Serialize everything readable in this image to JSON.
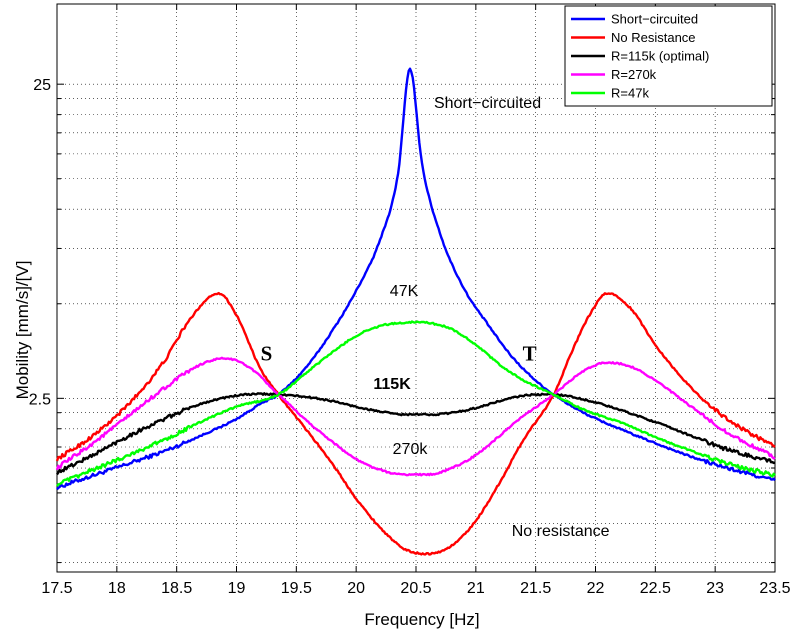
{
  "chart_data": {
    "type": "line",
    "xlabel": "Frequency [Hz]",
    "ylabel": "Mobility [mm/s]/[V]",
    "xlim": [
      17.5,
      23.5
    ],
    "ylim": [
      0.7,
      45
    ],
    "yscale": "log",
    "grid": true,
    "legend_position": "top-right",
    "x_ticks": [
      "17.5",
      "18",
      "18.5",
      "19",
      "19.5",
      "20",
      "20.5",
      "21",
      "21.5",
      "22",
      "22.5",
      "23",
      "23.5"
    ],
    "y_ticks": [
      "2.5",
      "25"
    ],
    "series": [
      {
        "name": "Short−circuited",
        "color": "#0000ff",
        "x": [
          17.5,
          17.8,
          18.1,
          18.4,
          18.7,
          19.0,
          19.2,
          19.35,
          19.6,
          19.8,
          20.0,
          20.2,
          20.35,
          20.45,
          20.55,
          20.7,
          20.9,
          21.1,
          21.3,
          21.5,
          21.65,
          21.9,
          22.2,
          22.5,
          22.8,
          23.1,
          23.5
        ],
        "y": [
          1.3,
          1.42,
          1.55,
          1.7,
          1.9,
          2.15,
          2.4,
          2.57,
          3.2,
          4.1,
          5.5,
          8.0,
          13.0,
          28.0,
          14.0,
          8.4,
          5.6,
          4.3,
          3.4,
          2.85,
          2.57,
          2.25,
          2.0,
          1.8,
          1.63,
          1.5,
          1.37
        ]
      },
      {
        "name": "No Resistance",
        "color": "#ff0000",
        "x": [
          17.5,
          17.8,
          18.1,
          18.4,
          18.6,
          18.85,
          19.0,
          19.2,
          19.35,
          19.6,
          19.8,
          20.0,
          20.2,
          20.4,
          20.6,
          20.8,
          21.0,
          21.2,
          21.4,
          21.65,
          21.8,
          21.95,
          22.1,
          22.3,
          22.5,
          22.8,
          23.1,
          23.5
        ],
        "y": [
          1.6,
          1.9,
          2.4,
          3.3,
          4.4,
          5.4,
          4.6,
          3.1,
          2.57,
          1.95,
          1.55,
          1.2,
          0.97,
          0.83,
          0.8,
          0.85,
          1.02,
          1.35,
          1.85,
          2.57,
          3.5,
          4.6,
          5.4,
          4.8,
          3.7,
          2.7,
          2.15,
          1.75
        ]
      },
      {
        "name": "R=115k (optimal)",
        "color": "#000000",
        "x": [
          17.5,
          17.8,
          18.1,
          18.4,
          18.7,
          19.0,
          19.2,
          19.35,
          19.6,
          19.8,
          20.0,
          20.2,
          20.4,
          20.6,
          20.8,
          21.0,
          21.2,
          21.4,
          21.65,
          21.9,
          22.2,
          22.5,
          22.8,
          23.1,
          23.5
        ],
        "y": [
          1.45,
          1.65,
          1.9,
          2.15,
          2.4,
          2.55,
          2.58,
          2.57,
          2.52,
          2.45,
          2.35,
          2.27,
          2.22,
          2.22,
          2.25,
          2.33,
          2.45,
          2.55,
          2.57,
          2.48,
          2.3,
          2.1,
          1.9,
          1.72,
          1.56
        ]
      },
      {
        "name": "R=270k",
        "color": "#ff00ff",
        "x": [
          17.5,
          17.8,
          18.1,
          18.4,
          18.7,
          18.9,
          19.1,
          19.35,
          19.6,
          19.8,
          20.0,
          20.2,
          20.4,
          20.6,
          20.8,
          21.0,
          21.2,
          21.4,
          21.65,
          21.9,
          22.1,
          22.3,
          22.5,
          22.8,
          23.1,
          23.5
        ],
        "y": [
          1.5,
          1.8,
          2.2,
          2.7,
          3.2,
          3.35,
          3.15,
          2.57,
          2.1,
          1.82,
          1.6,
          1.48,
          1.43,
          1.43,
          1.5,
          1.65,
          1.9,
          2.2,
          2.57,
          3.05,
          3.25,
          3.15,
          2.85,
          2.35,
          1.95,
          1.62
        ]
      },
      {
        "name": "R=47k",
        "color": "#00ff00",
        "x": [
          17.5,
          17.8,
          18.1,
          18.4,
          18.7,
          19.0,
          19.35,
          19.6,
          19.8,
          20.0,
          20.2,
          20.4,
          20.5,
          20.6,
          20.8,
          21.0,
          21.2,
          21.4,
          21.65,
          21.9,
          22.2,
          22.5,
          22.8,
          23.1,
          23.5
        ],
        "y": [
          1.33,
          1.48,
          1.65,
          1.85,
          2.1,
          2.35,
          2.57,
          3.05,
          3.5,
          3.95,
          4.25,
          4.35,
          4.38,
          4.35,
          4.15,
          3.7,
          3.2,
          2.85,
          2.57,
          2.3,
          2.1,
          1.88,
          1.7,
          1.55,
          1.42
        ]
      }
    ],
    "annotations": [
      {
        "text": "Short−circuited",
        "x": 20.65,
        "y": 21.0,
        "style": "normal"
      },
      {
        "text": "47K",
        "x": 20.4,
        "y": 5.3,
        "style": "normal"
      },
      {
        "text": "115K",
        "x": 20.3,
        "y": 2.68,
        "style": "bold"
      },
      {
        "text": "270k",
        "x": 20.45,
        "y": 1.66,
        "style": "normal"
      },
      {
        "text": "No resistance",
        "x": 21.3,
        "y": 0.91,
        "style": "normal"
      },
      {
        "text": "S",
        "x": 19.25,
        "y": 3.3,
        "style": "serif"
      },
      {
        "text": "T",
        "x": 21.45,
        "y": 3.3,
        "style": "serif"
      }
    ]
  }
}
